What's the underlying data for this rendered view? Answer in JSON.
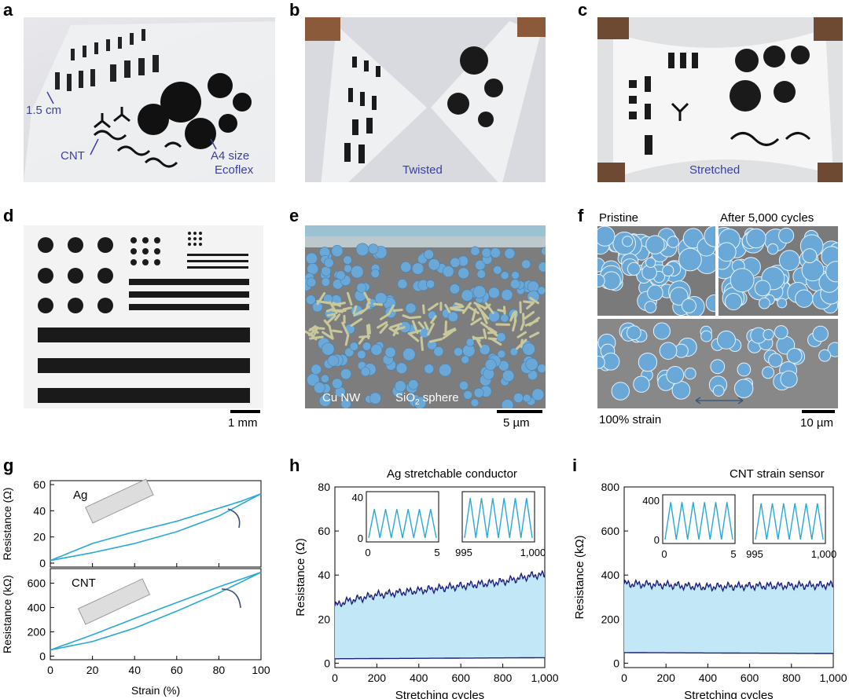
{
  "panels": {
    "a": {
      "label": "a",
      "callout_size": "1.5 cm",
      "callout_cnt": "CNT",
      "callout_a4": "A4 size",
      "callout_ecoflex": "Ecoflex"
    },
    "b": {
      "label": "b",
      "caption": "Twisted"
    },
    "c": {
      "label": "c",
      "caption": "Stretched"
    },
    "d": {
      "label": "d",
      "scale": "1 mm"
    },
    "e": {
      "label": "e",
      "callout_cunw": "Cu NW",
      "callout_sio2_main": "SiO",
      "callout_sio2_sub": "2",
      "callout_sio2_tail": " sphere",
      "scale": "5 µm"
    },
    "f": {
      "label": "f",
      "pristine": "Pristine",
      "after": "After 5,000 cycles",
      "strain": "100% strain",
      "scale": "10 µm"
    },
    "g": {
      "label": "g",
      "ag": "Ag",
      "cnt": "CNT"
    },
    "h": {
      "label": "h",
      "title": "Ag stretchable conductor"
    },
    "i": {
      "label": "i",
      "title": "CNT strain sensor"
    }
  },
  "colors": {
    "trace": "#29a8d6",
    "dark_trace": "#1c1f7d",
    "fill": "#c2e8f7",
    "callout": "#3a3fa0",
    "sem_sphere": "#6aa8d8",
    "sem_bg": "#7a7a7a",
    "cunw": "#c8c89a"
  },
  "chart_data": [
    {
      "panel": "g-top",
      "type": "line",
      "ylabel": "Resistance (Ω)",
      "xlabel": "",
      "xlim": [
        0,
        100
      ],
      "ylim": [
        -3,
        63
      ],
      "yticks": [
        0,
        20,
        40,
        60
      ],
      "series": [
        {
          "x": [
            0,
            20,
            40,
            60,
            80,
            100
          ],
          "values": [
            2,
            8,
            15,
            24,
            36,
            53
          ]
        },
        {
          "x": [
            0,
            20,
            40,
            60,
            80,
            90,
            100
          ],
          "values": [
            2,
            15,
            24,
            32,
            42,
            47,
            53
          ]
        }
      ]
    },
    {
      "panel": "g-bottom",
      "type": "line",
      "ylabel": "Resistance (kΩ)",
      "xlabel": "Strain (%)",
      "xlim": [
        0,
        100
      ],
      "ylim": [
        -30,
        720
      ],
      "xticks": [
        0,
        20,
        40,
        60,
        80,
        100
      ],
      "yticks": [
        0,
        200,
        400,
        600
      ],
      "series": [
        {
          "x": [
            0,
            20,
            40,
            60,
            80,
            100
          ],
          "values": [
            50,
            120,
            230,
            370,
            520,
            690
          ]
        },
        {
          "x": [
            0,
            20,
            40,
            60,
            80,
            100
          ],
          "values": [
            50,
            175,
            310,
            440,
            570,
            690
          ]
        }
      ]
    },
    {
      "panel": "h",
      "type": "area",
      "title": "Ag stretchable conductor",
      "xlabel": "Stretching cycles",
      "ylabel": "Resistance (Ω)",
      "xlim": [
        0,
        1000
      ],
      "ylim": [
        -2,
        80
      ],
      "xticks": [
        0,
        200,
        400,
        600,
        800,
        "1,000"
      ],
      "yticks": [
        0,
        20,
        40,
        60,
        80
      ],
      "series": [
        {
          "name": "",
          "x": [
            0,
            50,
            100,
            200,
            300,
            400,
            500,
            600,
            700,
            800,
            900,
            950,
            1000
          ],
          "values": [
            26,
            28,
            29,
            31,
            32,
            33,
            34,
            35,
            36,
            37,
            39,
            40,
            40
          ]
        },
        {
          "name": "",
          "x": [
            0,
            1000
          ],
          "values": [
            2,
            2.5
          ]
        }
      ],
      "insets": [
        {
          "xlim": [
            0,
            5
          ],
          "xticks": [
            "0",
            "5"
          ],
          "yticks": [
            "0",
            "40"
          ],
          "ylim": [
            0,
            40
          ],
          "peaks": 27
        },
        {
          "xlim": [
            995,
            1000
          ],
          "xticks": [
            "995",
            "1,000"
          ],
          "ylim": [
            0,
            40
          ],
          "peaks": 37
        }
      ]
    },
    {
      "panel": "i",
      "type": "area",
      "title": "CNT strain sensor",
      "xlabel": "Stretching cycles",
      "ylabel": "Resistance (kΩ)",
      "xlim": [
        0,
        1000
      ],
      "ylim": [
        -20,
        800
      ],
      "xticks": [
        0,
        200,
        400,
        600,
        800,
        "1,000"
      ],
      "yticks": [
        0,
        200,
        400,
        600,
        800
      ],
      "series": [
        {
          "name": "",
          "x": [
            0,
            100,
            200,
            300,
            400,
            500,
            600,
            700,
            800,
            900,
            1000
          ],
          "values": [
            360,
            358,
            355,
            350,
            346,
            348,
            350,
            351,
            352,
            353,
            355
          ]
        },
        {
          "name": "",
          "x": [
            0,
            1000
          ],
          "values": [
            48,
            44
          ]
        }
      ],
      "insets": [
        {
          "xlim": [
            0,
            5
          ],
          "xticks": [
            "0",
            "5"
          ],
          "yticks": [
            "0",
            "400"
          ],
          "ylim": [
            0,
            400
          ],
          "peaks": 360
        },
        {
          "xlim": [
            995,
            1000
          ],
          "xticks": [
            "995",
            "1,000"
          ],
          "ylim": [
            0,
            400
          ],
          "peaks": 350
        }
      ]
    }
  ]
}
